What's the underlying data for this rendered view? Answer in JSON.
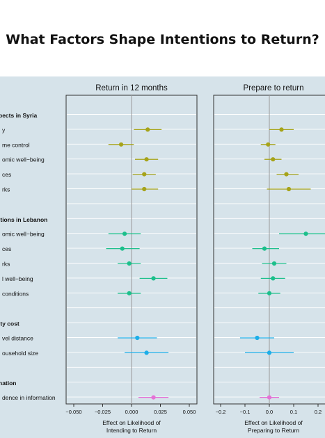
{
  "title": "What Factors Shape Intentions to Return?",
  "chart_data": {
    "type": "forest",
    "panels": [
      {
        "title": "Return in 12 months",
        "xlabel": [
          "Effect on Likelihood of",
          "Intending to Return"
        ],
        "xlim": [
          -0.05,
          0.05
        ],
        "ticks": [
          -0.05,
          -0.025,
          0,
          0.025,
          0.05
        ],
        "tick_labels": [
          "−0.050",
          "−0.025",
          "0.000",
          "0.025",
          "0.050"
        ]
      },
      {
        "title": "Prepare to return",
        "xlabel": [
          "Effect on Likelihood of",
          "Preparing to Return"
        ],
        "xlim": [
          -0.2,
          0.2
        ],
        "ticks": [
          -0.2,
          -0.1,
          0,
          0.1,
          0.2
        ],
        "tick_labels": [
          "−0.2",
          "−0.1",
          "0.0",
          "0.1",
          "0.2"
        ]
      }
    ],
    "groups": [
      {
        "label": "pects in Syria",
        "color": "#a6a319",
        "items": [
          {
            "label": "y",
            "est": [
              0.014,
              0.05
            ],
            "ci": [
              [
                0.002,
                0.026
              ],
              [
                0.0,
                0.1
              ]
            ]
          },
          {
            "label": "me control",
            "est": [
              -0.009,
              -0.005
            ],
            "ci": [
              [
                -0.02,
                0.002
              ],
              [
                -0.035,
                0.025
              ]
            ]
          },
          {
            "label": "omic well−being",
            "est": [
              0.013,
              0.015
            ],
            "ci": [
              [
                0.003,
                0.023
              ],
              [
                -0.02,
                0.05
              ]
            ]
          },
          {
            "label": "ces",
            "est": [
              0.011,
              0.07
            ],
            "ci": [
              [
                0.001,
                0.021
              ],
              [
                0.03,
                0.12
              ]
            ]
          },
          {
            "label": "rks",
            "est": [
              0.011,
              0.08
            ],
            "ci": [
              [
                0.0,
                0.023
              ],
              [
                -0.01,
                0.17
              ]
            ]
          }
        ]
      },
      {
        "label": "itions in Lebanon",
        "color": "#1cbf8b",
        "items": [
          {
            "label": "omic well−being",
            "est": [
              -0.006,
              0.15
            ],
            "ci": [
              [
                -0.02,
                0.008
              ],
              [
                0.04,
                0.26
              ]
            ]
          },
          {
            "label": "ces",
            "est": [
              -0.008,
              -0.02
            ],
            "ci": [
              [
                -0.022,
                0.007
              ],
              [
                -0.07,
                0.04
              ]
            ]
          },
          {
            "label": "rks",
            "est": [
              -0.002,
              0.02
            ],
            "ci": [
              [
                -0.012,
                0.008
              ],
              [
                -0.03,
                0.07
              ]
            ]
          },
          {
            "label": "l well−being",
            "est": [
              0.019,
              0.015
            ],
            "ci": [
              [
                0.007,
                0.031
              ],
              [
                -0.035,
                0.065
              ]
            ]
          },
          {
            "label": "conditions",
            "est": [
              -0.002,
              0.0
            ],
            "ci": [
              [
                -0.012,
                0.008
              ],
              [
                -0.045,
                0.045
              ]
            ]
          }
        ]
      },
      {
        "label": "ity cost",
        "color": "#1eaee8",
        "items": [
          {
            "label": "vel distance",
            "est": [
              0.005,
              -0.05
            ],
            "ci": [
              [
                -0.012,
                0.022
              ],
              [
                -0.12,
                0.02
              ]
            ]
          },
          {
            "label": "ousehold size",
            "est": [
              0.013,
              0.0
            ],
            "ci": [
              [
                -0.006,
                0.032
              ],
              [
                -0.1,
                0.1
              ]
            ]
          }
        ]
      },
      {
        "label": "nation",
        "color": "#e572d6",
        "items": [
          {
            "label": "dence in information",
            "est": [
              0.019,
              0.0
            ],
            "ci": [
              [
                0.006,
                0.032
              ],
              [
                -0.04,
                0.04
              ]
            ]
          }
        ]
      }
    ]
  }
}
